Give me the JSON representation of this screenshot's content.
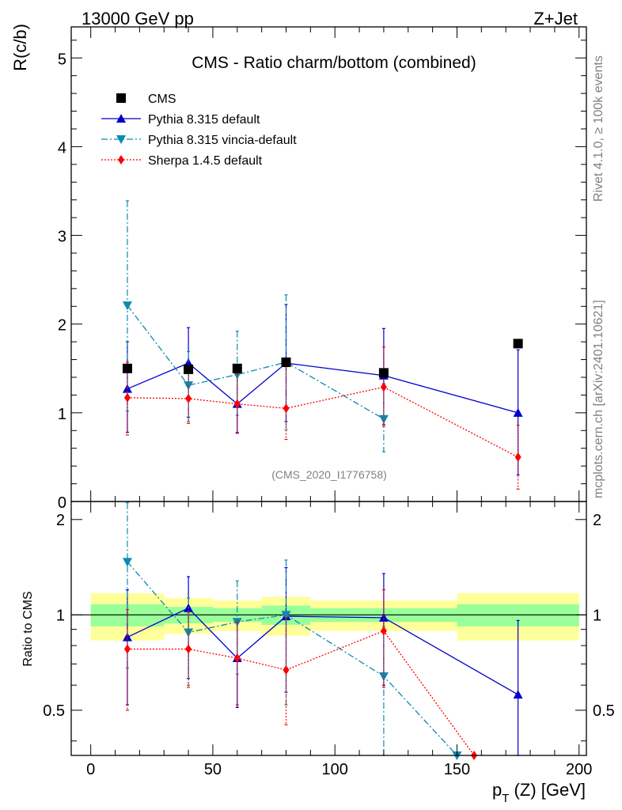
{
  "header": {
    "left": "13000 GeV pp",
    "right": "Z+Jet"
  },
  "side_text": {
    "rivet": "Rivet 4.1.0, ≥ 100k events",
    "mcplots": "mcplots.cern.ch [arXiv:2401.10621]"
  },
  "chart_data": [
    {
      "type": "scatter",
      "panel": "main",
      "title": "CMS - Ratio charm/bottom (combined)",
      "watermark": "(CMS_2020_I1776758)",
      "xlabel_main": "p",
      "xlabel_sub": "T",
      "xlabel_tail": " (Z) [GeV]",
      "ylabel": "R(c/b)",
      "xlim": [
        -8,
        203
      ],
      "ylim": [
        0,
        5.35
      ],
      "x_ticks": [
        0,
        50,
        100,
        150,
        200
      ],
      "x_tick_labels": [
        "0",
        "50",
        "100",
        "150",
        "200"
      ],
      "y_ticks": [
        0,
        1,
        2,
        3,
        4,
        5
      ],
      "y_tick_labels": [
        "0",
        "1",
        "2",
        "3",
        "4",
        "5"
      ],
      "x": [
        15,
        40,
        60,
        80,
        120,
        175
      ],
      "legend_position": "top-left",
      "series": [
        {
          "name": "CMS",
          "color": "#000000",
          "marker": "square",
          "line": "none",
          "x": [
            15,
            40,
            60,
            80,
            120,
            175
          ],
          "values": [
            1.5,
            1.49,
            1.5,
            1.57,
            1.45,
            1.78
          ]
        },
        {
          "name": "Pythia 8.315 default",
          "color": "#0000cc",
          "marker": "triangle-up",
          "line": "solid",
          "x": [
            15,
            40,
            60,
            80,
            120,
            175
          ],
          "values": [
            1.27,
            1.56,
            1.1,
            1.56,
            1.42,
            1.0
          ],
          "err_up": [
            1.8,
            1.96,
            1.44,
            2.22,
            1.95,
            1.71
          ],
          "err_down": [
            0.78,
            0.95,
            0.77,
            0.9,
            0.87,
            0.3
          ]
        },
        {
          "name": "Pythia 8.315 vincia-default",
          "color": "#0a8bb0",
          "marker": "triangle-down",
          "line": "dashdot",
          "x": [
            15,
            40,
            60,
            80,
            120
          ],
          "values": [
            2.21,
            1.31,
            1.43,
            1.57,
            0.93
          ],
          "err_up": [
            3.39,
            1.69,
            1.92,
            2.33,
            1.33
          ],
          "err_down": [
            1.02,
            0.9,
            0.97,
            0.81,
            0.56
          ]
        },
        {
          "name": "Sherpa 1.4.5 default",
          "color": "#ff0000",
          "marker": "diamond",
          "line": "dotted",
          "x": [
            15,
            40,
            60,
            80,
            120,
            175
          ],
          "values": [
            1.17,
            1.16,
            1.1,
            1.05,
            1.29,
            0.5
          ],
          "err_up": [
            1.57,
            1.53,
            1.44,
            1.52,
            1.74,
            0.86
          ],
          "err_down": [
            0.75,
            0.88,
            0.78,
            0.7,
            0.85,
            0.14
          ]
        }
      ]
    },
    {
      "type": "scatter",
      "panel": "ratio",
      "ylabel": "Ratio to CMS",
      "ylim": [
        0.36,
        2.28
      ],
      "y_ticks": [
        0.5,
        1,
        2
      ],
      "y_tick_labels": [
        "0.5",
        "1",
        "2"
      ],
      "reference_line": 1,
      "bands": {
        "inner_color": "#99ff99",
        "outer_color": "#ffff99",
        "bins": [
          {
            "x0": 0,
            "x1": 30,
            "inner": [
              0.92,
              1.08
            ],
            "outer": [
              0.83,
              1.17
            ]
          },
          {
            "x0": 30,
            "x1": 50,
            "inner": [
              0.94,
              1.06
            ],
            "outer": [
              0.87,
              1.13
            ]
          },
          {
            "x0": 50,
            "x1": 70,
            "inner": [
              0.95,
              1.05
            ],
            "outer": [
              0.89,
              1.11
            ]
          },
          {
            "x0": 70,
            "x1": 90,
            "inner": [
              0.93,
              1.07
            ],
            "outer": [
              0.86,
              1.14
            ]
          },
          {
            "x0": 90,
            "x1": 150,
            "inner": [
              0.95,
              1.05
            ],
            "outer": [
              0.89,
              1.11
            ]
          },
          {
            "x0": 150,
            "x1": 200,
            "inner": [
              0.92,
              1.08
            ],
            "outer": [
              0.83,
              1.17
            ]
          }
        ]
      },
      "series": [
        {
          "name": "Pythia 8.315 default",
          "color": "#0000cc",
          "marker": "triangle-up",
          "line": "solid",
          "x": [
            15,
            40,
            60,
            80,
            120,
            175
          ],
          "values": [
            0.85,
            1.05,
            0.73,
            0.99,
            0.98,
            0.56
          ],
          "err_up": [
            1.2,
            1.32,
            0.95,
            1.41,
            1.35,
            0.96
          ],
          "err_down": [
            0.52,
            0.63,
            0.51,
            0.57,
            0.6,
            0.17
          ]
        },
        {
          "name": "Pythia 8.315 vincia-default",
          "color": "#0a8bb0",
          "marker": "triangle-down",
          "line": "dashdot",
          "x": [
            15,
            40,
            60,
            80,
            120,
            150
          ],
          "values": [
            1.47,
            0.88,
            0.95,
            1.0,
            0.64,
            0.36
          ],
          "err_up": [
            2.26,
            1.13,
            1.28,
            1.49,
            0.92,
            null
          ],
          "err_down": [
            0.68,
            0.6,
            0.65,
            0.52,
            0.36,
            null
          ]
        },
        {
          "name": "Sherpa 1.4.5 default",
          "color": "#ff0000",
          "marker": "diamond",
          "line": "dotted",
          "x": [
            15,
            40,
            60,
            80,
            120,
            157
          ],
          "values": [
            0.78,
            0.78,
            0.73,
            0.67,
            0.89,
            0.36
          ],
          "err_up": [
            1.04,
            1.02,
            0.95,
            0.98,
            1.2,
            null
          ],
          "err_down": [
            0.5,
            0.59,
            0.52,
            0.45,
            0.59,
            null
          ]
        }
      ]
    }
  ]
}
